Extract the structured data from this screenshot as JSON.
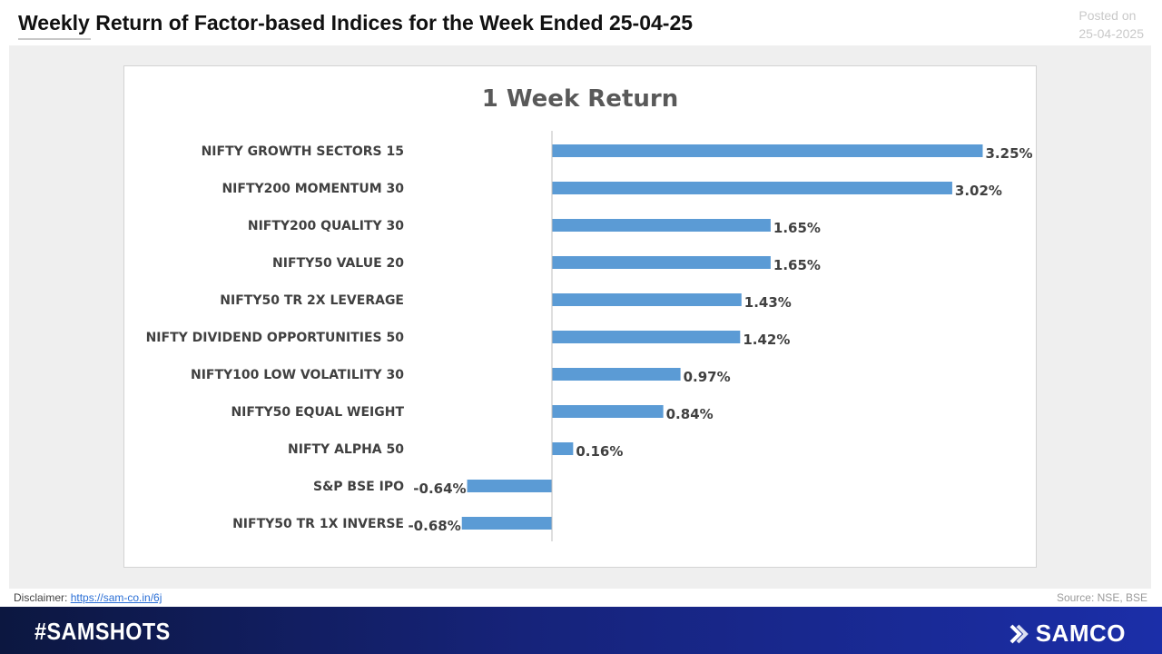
{
  "header": {
    "title": "Weekly Return of Factor-based Indices for the Week Ended 25-04-25",
    "posted_line1": "Posted on",
    "posted_line2": "25-04-2025"
  },
  "footer": {
    "disclaimer_label": "Disclaimer:",
    "disclaimer_link": "https://sam-co.in/6j",
    "source": "Source: NSE, BSE",
    "hashtag": "#SAMSHOTS",
    "brand": "SAMCO"
  },
  "colors": {
    "bar": "#5b9bd5",
    "axis": "#bfbfbf",
    "text": "#404040",
    "footer": "#16237a"
  },
  "chart_data": {
    "type": "bar",
    "orientation": "horizontal",
    "title": "1 Week Return",
    "categories": [
      "NIFTY GROWTH SECTORS 15",
      "NIFTY200 MOMENTUM 30",
      "NIFTY200 QUALITY 30",
      "NIFTY50 VALUE 20",
      "NIFTY50 TR 2X LEVERAGE",
      "NIFTY DIVIDEND OPPORTUNITIES 50",
      "NIFTY100 LOW VOLATILITY 30",
      "NIFTY50 EQUAL WEIGHT",
      "NIFTY ALPHA 50",
      "S&P BSE IPO",
      "NIFTY50 TR 1X INVERSE"
    ],
    "values": [
      3.25,
      3.02,
      1.65,
      1.65,
      1.43,
      1.42,
      0.97,
      0.84,
      0.16,
      -0.64,
      -0.68
    ],
    "labels": [
      "3.25%",
      "3.02%",
      "1.65%",
      "1.65%",
      "1.43%",
      "1.42%",
      "0.97%",
      "0.84%",
      "0.16%",
      "-0.64%",
      "-0.68%"
    ],
    "unit": "%",
    "xlim": [
      -0.68,
      3.25
    ],
    "grid": false,
    "legend": "none"
  }
}
